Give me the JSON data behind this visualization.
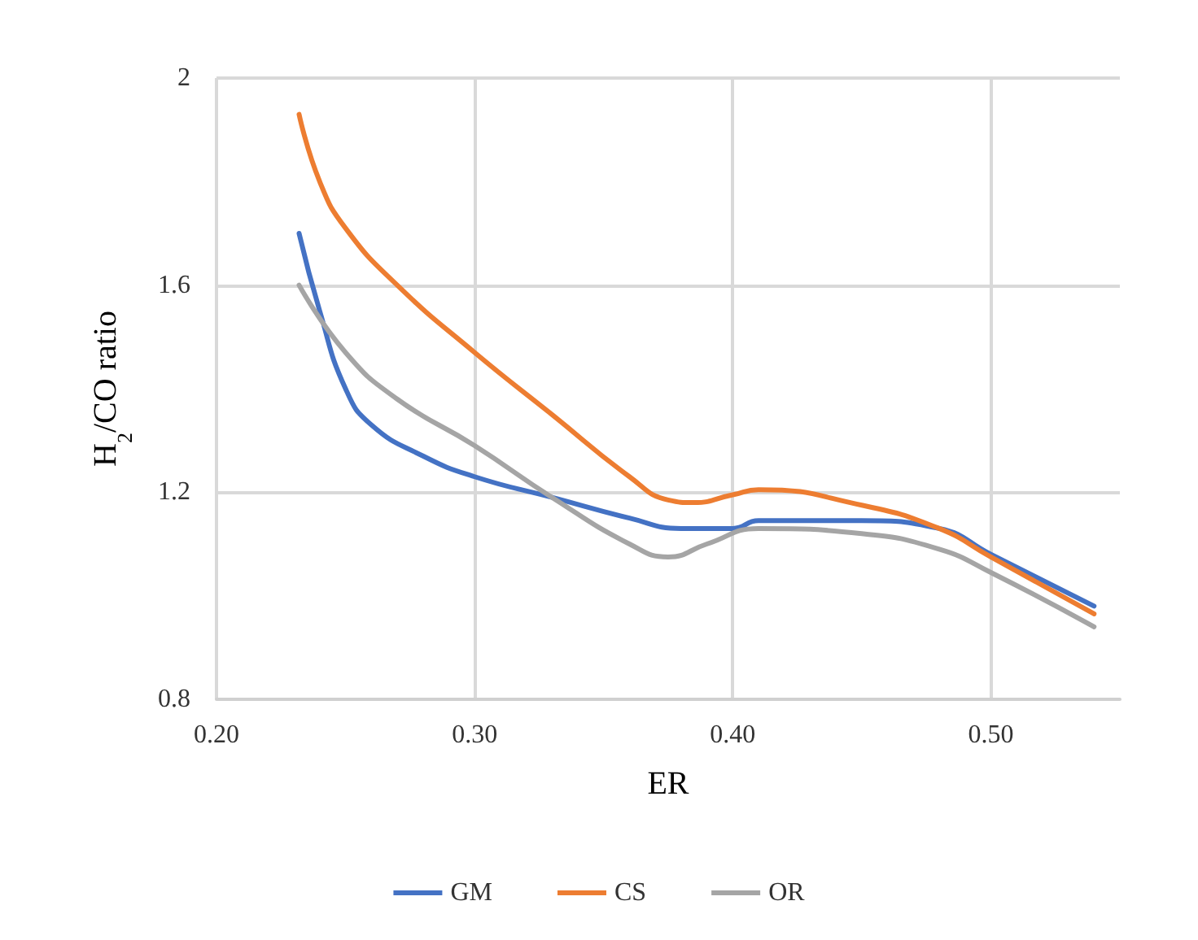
{
  "chart_data": {
    "type": "line",
    "xlabel": "ER",
    "ylabel": "H$_{2}$/CO ratio",
    "xlim": [
      0.2,
      0.55
    ],
    "xticks": [
      {
        "value": 0.2,
        "label": "0.20"
      },
      {
        "value": 0.3,
        "label": "0.30"
      },
      {
        "value": 0.4,
        "label": "0.40"
      },
      {
        "value": 0.5,
        "label": "0.50"
      }
    ],
    "ylim": [
      0.8,
      2
    ],
    "yticks": [
      0.8,
      1.2,
      1.6,
      2
    ],
    "grid": true,
    "legend": "bottom",
    "marker": "none",
    "line_style": "solid",
    "series": [
      {
        "name": "GM",
        "color": "#4472c4",
        "x": [
          0.232,
          0.24,
          0.25,
          0.26,
          0.28,
          0.3,
          0.33,
          0.36,
          0.38,
          0.4,
          0.41,
          0.45,
          0.48,
          0.5,
          0.54
        ],
        "values": [
          1.7,
          1.55,
          1.4,
          1.33,
          1.27,
          1.23,
          1.19,
          1.15,
          1.13,
          1.13,
          1.145,
          1.145,
          1.13,
          1.08,
          0.98
        ]
      },
      {
        "name": "CS",
        "color": "#ed7d31",
        "x": [
          0.232,
          0.24,
          0.25,
          0.27,
          0.3,
          0.33,
          0.36,
          0.375,
          0.385,
          0.4,
          0.41,
          0.45,
          0.48,
          0.5,
          0.54
        ],
        "values": [
          1.93,
          1.8,
          1.71,
          1.6,
          1.47,
          1.35,
          1.23,
          1.185,
          1.18,
          1.195,
          1.205,
          1.175,
          1.13,
          1.075,
          0.965
        ]
      },
      {
        "name": "OR",
        "color": "#a5a5a5",
        "x": [
          0.232,
          0.25,
          0.27,
          0.3,
          0.33,
          0.36,
          0.375,
          0.39,
          0.41,
          0.45,
          0.48,
          0.5,
          0.54
        ],
        "values": [
          1.6,
          1.47,
          1.38,
          1.29,
          1.19,
          1.1,
          1.075,
          1.1,
          1.13,
          1.12,
          1.09,
          1.045,
          0.94
        ]
      }
    ]
  }
}
